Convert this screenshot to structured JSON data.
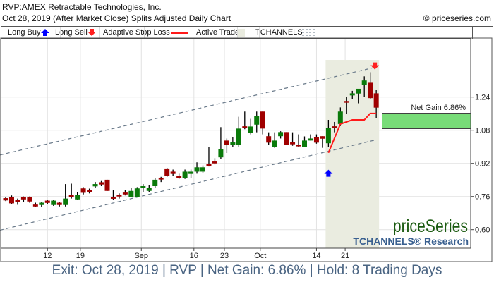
{
  "header": {
    "title": "RVP:AMEX Retractable Technologies, Inc.",
    "subtitle": "Oct 28, 2019 (After Market Close)  Splits Adjusted Daily Chart",
    "copyright": "© priceseries.com"
  },
  "legend": {
    "long_buy": "Long Buy",
    "long_sell": "Long Sell",
    "stop_loss": "Adaptive Stop Loss",
    "active_trade": "Active Trade",
    "tchannels": "TCHANNELS"
  },
  "watermark": {
    "brand": "priceSeries",
    "sub": "TCHANNELS® Research"
  },
  "footer": "Exit: Oct 28, 2019 | RVP | Net Gain: 6.86% | Hold: 8 Trading Days",
  "colors": {
    "up": "#0a7a0a",
    "down": "#a00000",
    "stop": "#ff1a1a",
    "active": "#eaece0",
    "gain": "#78dc78",
    "buy": "#0000ff",
    "sell": "#ff2020",
    "brand": "#1a5a10",
    "sub": "#3a6090",
    "footer": "#4a6482"
  },
  "chart_data": {
    "type": "candlestick",
    "title": "RVP:AMEX Retractable Technologies, Inc.",
    "ylim": [
      0.51,
      1.52
    ],
    "yticks": [
      "0.60",
      "0.76",
      "0.92",
      "1.08",
      "1.24"
    ],
    "xticks": [
      {
        "label": "12",
        "index": 7
      },
      {
        "label": "19",
        "index": 12.5
      },
      {
        "label": "Sep",
        "index": 22.7
      },
      {
        "label": "16",
        "index": 31.5
      },
      {
        "label": "23",
        "index": 36.6
      },
      {
        "label": "Oct",
        "index": 42.6
      },
      {
        "label": "14",
        "index": 52
      },
      {
        "label": "21",
        "index": 56.8
      }
    ],
    "ohlc": [
      [
        0.752,
        0.758,
        0.738,
        0.741
      ],
      [
        0.758,
        0.765,
        0.722,
        0.727
      ],
      [
        0.742,
        0.75,
        0.72,
        0.733
      ],
      [
        0.757,
        0.76,
        0.735,
        0.746
      ],
      [
        0.757,
        0.76,
        0.73,
        0.736
      ],
      [
        0.721,
        0.73,
        0.708,
        0.712
      ],
      [
        0.719,
        0.732,
        0.71,
        0.73
      ],
      [
        0.74,
        0.745,
        0.722,
        0.729
      ],
      [
        0.719,
        0.745,
        0.715,
        0.74
      ],
      [
        0.73,
        0.735,
        0.712,
        0.719
      ],
      [
        0.719,
        0.82,
        0.712,
        0.75
      ],
      [
        0.769,
        0.822,
        0.75,
        0.756
      ],
      [
        0.746,
        0.78,
        0.742,
        0.769
      ],
      [
        0.799,
        0.805,
        0.77,
        0.778
      ],
      [
        0.79,
        0.798,
        0.775,
        0.78
      ],
      [
        0.809,
        0.83,
        0.8,
        0.82
      ],
      [
        0.829,
        0.835,
        0.81,
        0.818
      ],
      [
        0.841,
        0.841,
        0.787,
        0.787
      ],
      [
        0.757,
        0.79,
        0.745,
        0.749
      ],
      [
        0.769,
        0.775,
        0.75,
        0.76
      ],
      [
        0.779,
        0.79,
        0.765,
        0.77
      ],
      [
        0.757,
        0.8,
        0.757,
        0.787
      ],
      [
        0.757,
        0.805,
        0.757,
        0.799
      ],
      [
        0.8,
        0.82,
        0.78,
        0.81
      ],
      [
        0.787,
        0.815,
        0.78,
        0.8
      ],
      [
        0.81,
        0.85,
        0.8,
        0.841
      ],
      [
        0.851,
        0.855,
        0.83,
        0.842
      ],
      [
        0.892,
        0.895,
        0.855,
        0.86
      ],
      [
        0.88,
        0.89,
        0.86,
        0.869
      ],
      [
        0.861,
        0.87,
        0.845,
        0.85
      ],
      [
        0.849,
        0.89,
        0.845,
        0.88
      ],
      [
        0.869,
        0.89,
        0.85,
        0.88
      ],
      [
        0.88,
        0.925,
        0.87,
        0.901
      ],
      [
        0.88,
        0.91,
        0.875,
        0.901
      ],
      [
        0.919,
        1.0,
        0.905,
        0.906
      ],
      [
        0.929,
        0.945,
        0.915,
        0.92
      ],
      [
        0.949,
        1.095,
        0.94,
        0.99
      ],
      [
        1.03,
        1.04,
        0.97,
        1.009
      ],
      [
        1.009,
        1.045,
        1.0,
        1.021
      ],
      [
        1.008,
        1.145,
        1.0,
        1.088
      ],
      [
        1.099,
        1.17,
        1.085,
        1.09
      ],
      [
        1.068,
        1.135,
        1.06,
        1.098
      ],
      [
        1.107,
        1.17,
        1.07,
        1.15
      ],
      [
        1.17,
        1.17,
        1.06,
        1.088
      ],
      [
        1.051,
        1.07,
        1.01,
        1.02
      ],
      [
        1.0,
        1.07,
        0.995,
        1.03
      ],
      [
        1.051,
        1.075,
        1.04,
        1.071
      ],
      [
        1.071,
        1.071,
        1.01,
        1.01
      ],
      [
        1.021,
        1.07,
        1.005,
        1.012
      ],
      [
        1.01,
        1.06,
        1.0,
        1.002
      ],
      [
        1.0,
        1.05,
        0.998,
        1.03
      ],
      [
        1.03,
        1.06,
        1.03,
        1.04
      ],
      [
        1.045,
        1.06,
        1.015,
        1.02
      ],
      [
        1.051,
        1.051,
        0.995,
        1.039
      ],
      [
        1.017,
        1.13,
        1.0,
        1.09
      ],
      [
        1.099,
        1.12,
        1.07,
        1.09
      ],
      [
        1.11,
        1.19,
        1.1,
        1.17
      ],
      [
        1.221,
        1.24,
        1.16,
        1.213
      ],
      [
        1.248,
        1.27,
        1.23,
        1.258
      ],
      [
        1.257,
        1.27,
        1.21,
        1.28
      ],
      [
        1.298,
        1.34,
        1.24,
        1.32
      ],
      [
        1.309,
        1.36,
        1.23,
        1.235
      ],
      [
        1.258,
        1.275,
        1.14,
        1.189
      ]
    ],
    "channel_upper": [
      [
        0,
        0.967
      ],
      [
        62,
        1.385
      ]
    ],
    "channel_lower": [
      [
        0,
        0.604
      ],
      [
        62,
        1.034
      ]
    ],
    "stop_loss": [
      [
        54,
        0.971
      ],
      [
        56,
        1.11
      ],
      [
        58,
        1.13
      ],
      [
        60,
        1.13
      ],
      [
        61,
        1.161
      ],
      [
        62,
        1.161
      ]
    ],
    "active_trade": [
      54,
      62
    ],
    "long_buy": {
      "index": 54,
      "price": 0.9
    },
    "long_sell": {
      "index": 62,
      "price": 1.38
    },
    "net_gain": {
      "label": "Net Gain 6.86%",
      "top": 1.161,
      "bottom": 1.089
    }
  }
}
